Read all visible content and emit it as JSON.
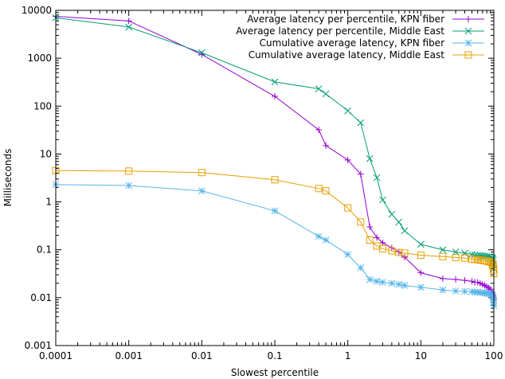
{
  "chart_data": {
    "type": "line",
    "title": "",
    "xlabel": "Slowest percentile",
    "ylabel": "Milliseconds",
    "xscale": "log",
    "yscale": "log",
    "xlim": [
      0.0001,
      100
    ],
    "ylim": [
      0.001,
      10000
    ],
    "x_ticks": [
      {
        "value": 0.0001,
        "label": "0.0001"
      },
      {
        "value": 0.001,
        "label": "0.001"
      },
      {
        "value": 0.01,
        "label": "0.01"
      },
      {
        "value": 0.1,
        "label": "0.1"
      },
      {
        "value": 1,
        "label": "1"
      },
      {
        "value": 10,
        "label": "10"
      },
      {
        "value": 100,
        "label": "100"
      }
    ],
    "y_ticks": [
      {
        "value": 0.001,
        "label": "0.001"
      },
      {
        "value": 0.01,
        "label": "0.01"
      },
      {
        "value": 0.1,
        "label": "0.1"
      },
      {
        "value": 1,
        "label": "1"
      },
      {
        "value": 10,
        "label": "10"
      },
      {
        "value": 100,
        "label": "100"
      },
      {
        "value": 1000,
        "label": "1000"
      },
      {
        "value": 10000,
        "label": "10000"
      }
    ],
    "grid": false,
    "legend_position": "top-right",
    "series": [
      {
        "name": "Average latency per percentile, KPN fiber",
        "color": "#9400d3",
        "marker": "plus",
        "points": [
          [
            0.0001,
            7500
          ],
          [
            0.001,
            6000
          ],
          [
            0.01,
            1200
          ],
          [
            0.1,
            160
          ],
          [
            0.4,
            32
          ],
          [
            0.5,
            15
          ],
          [
            1,
            7.5
          ],
          [
            1.5,
            3.8
          ],
          [
            2,
            0.3
          ],
          [
            2.5,
            0.18
          ],
          [
            3,
            0.14
          ],
          [
            4,
            0.11
          ],
          [
            5,
            0.09
          ],
          [
            6,
            0.07
          ],
          [
            10,
            0.033
          ],
          [
            20,
            0.025
          ],
          [
            30,
            0.024
          ],
          [
            40,
            0.023
          ],
          [
            50,
            0.022
          ],
          [
            55,
            0.021
          ],
          [
            60,
            0.021
          ],
          [
            65,
            0.02
          ],
          [
            70,
            0.019
          ],
          [
            75,
            0.018
          ],
          [
            80,
            0.017
          ],
          [
            85,
            0.016
          ],
          [
            90,
            0.015
          ],
          [
            95,
            0.013
          ],
          [
            97,
            0.012
          ],
          [
            98,
            0.011
          ],
          [
            99,
            0.01
          ],
          [
            100,
            0.009
          ]
        ]
      },
      {
        "name": "Average latency per percentile, Middle East",
        "color": "#009e73",
        "marker": "cross",
        "points": [
          [
            0.0001,
            7000
          ],
          [
            0.001,
            4500
          ],
          [
            0.01,
            1300
          ],
          [
            0.1,
            320
          ],
          [
            0.4,
            230
          ],
          [
            0.5,
            180
          ],
          [
            1,
            80
          ],
          [
            1.5,
            45
          ],
          [
            2,
            8
          ],
          [
            2.5,
            3.2
          ],
          [
            3,
            1.1
          ],
          [
            4,
            0.55
          ],
          [
            5,
            0.38
          ],
          [
            6,
            0.25
          ],
          [
            10,
            0.13
          ],
          [
            20,
            0.1
          ],
          [
            30,
            0.09
          ],
          [
            40,
            0.085
          ],
          [
            50,
            0.08
          ],
          [
            55,
            0.078
          ],
          [
            60,
            0.077
          ],
          [
            65,
            0.076
          ],
          [
            70,
            0.075
          ],
          [
            75,
            0.074
          ],
          [
            80,
            0.073
          ],
          [
            85,
            0.072
          ],
          [
            90,
            0.07
          ],
          [
            95,
            0.068
          ],
          [
            97,
            0.065
          ],
          [
            98,
            0.06
          ],
          [
            99,
            0.05
          ],
          [
            100,
            0.04
          ]
        ]
      },
      {
        "name": "Cumulative average latency, KPN fiber",
        "color": "#56b4e9",
        "marker": "star",
        "points": [
          [
            0.0001,
            2.3
          ],
          [
            0.001,
            2.2
          ],
          [
            0.01,
            1.7
          ],
          [
            0.1,
            0.65
          ],
          [
            0.4,
            0.19
          ],
          [
            0.5,
            0.16
          ],
          [
            1,
            0.08
          ],
          [
            1.5,
            0.042
          ],
          [
            2,
            0.024
          ],
          [
            2.5,
            0.022
          ],
          [
            3,
            0.021
          ],
          [
            4,
            0.02
          ],
          [
            5,
            0.019
          ],
          [
            6,
            0.018
          ],
          [
            10,
            0.0165
          ],
          [
            20,
            0.0145
          ],
          [
            30,
            0.0138
          ],
          [
            40,
            0.0135
          ],
          [
            50,
            0.0133
          ],
          [
            55,
            0.0131
          ],
          [
            60,
            0.013
          ],
          [
            65,
            0.0128
          ],
          [
            70,
            0.0126
          ],
          [
            75,
            0.0125
          ],
          [
            80,
            0.0124
          ],
          [
            85,
            0.0122
          ],
          [
            90,
            0.012
          ],
          [
            95,
            0.0115
          ],
          [
            97,
            0.0105
          ],
          [
            98,
            0.0095
          ],
          [
            99,
            0.008
          ],
          [
            100,
            0.0068
          ]
        ]
      },
      {
        "name": "Cumulative average latency, Middle East",
        "color": "#e69f00",
        "marker": "box",
        "points": [
          [
            0.0001,
            4.5
          ],
          [
            0.001,
            4.4
          ],
          [
            0.01,
            4.1
          ],
          [
            0.1,
            2.9
          ],
          [
            0.4,
            1.9
          ],
          [
            0.5,
            1.7
          ],
          [
            1,
            0.75
          ],
          [
            1.5,
            0.38
          ],
          [
            2,
            0.16
          ],
          [
            2.5,
            0.12
          ],
          [
            3,
            0.105
          ],
          [
            4,
            0.095
          ],
          [
            5,
            0.088
          ],
          [
            6,
            0.085
          ],
          [
            10,
            0.077
          ],
          [
            20,
            0.072
          ],
          [
            30,
            0.069
          ],
          [
            40,
            0.067
          ],
          [
            50,
            0.064
          ],
          [
            55,
            0.063
          ],
          [
            60,
            0.062
          ],
          [
            65,
            0.061
          ],
          [
            70,
            0.06
          ],
          [
            75,
            0.059
          ],
          [
            80,
            0.058
          ],
          [
            85,
            0.057
          ],
          [
            90,
            0.055
          ],
          [
            95,
            0.052
          ],
          [
            97,
            0.048
          ],
          [
            98,
            0.044
          ],
          [
            99,
            0.038
          ],
          [
            100,
            0.032
          ]
        ]
      }
    ]
  }
}
